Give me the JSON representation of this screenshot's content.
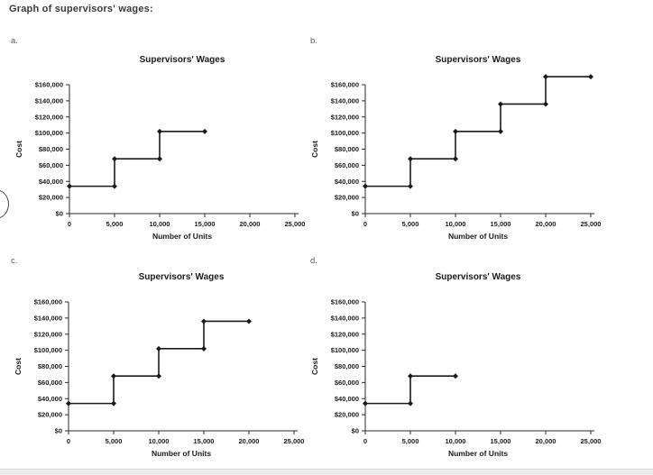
{
  "page": {
    "title": "Graph of supervisors' wages:"
  },
  "colors": {
    "title_text": "#3a3a3a",
    "panel_label_text": "#595959",
    "chart_text": "#1a1a1a",
    "line": "#1a1a1a",
    "axis": "#2b2b2b",
    "bottom_bar": "#ededed",
    "bottom_bar_border": "#d6d6d6",
    "arc_stroke": "#4a4a4a"
  },
  "panels": [
    {
      "label": "a."
    },
    {
      "label": "b."
    },
    {
      "label": "c."
    },
    {
      "label": "d."
    }
  ],
  "chart_data": [
    {
      "id": "a",
      "type": "line",
      "subtype": "step",
      "title": "Supervisors' Wages",
      "xlabel": "Number of Units",
      "ylabel": "Cost",
      "xlim": [
        0,
        25000
      ],
      "ylim": [
        0,
        160000
      ],
      "xticks": [
        0,
        5000,
        10000,
        15000,
        20000,
        25000
      ],
      "yticks": [
        0,
        20000,
        40000,
        60000,
        80000,
        100000,
        120000,
        140000,
        160000
      ],
      "x_tick_labels": [
        "0",
        "5,000",
        "10,000",
        "15,000",
        "20,000",
        "25,000"
      ],
      "y_tick_labels": [
        "$0",
        "$20,000",
        "$40,000",
        "$60,000",
        "$80,000",
        "$100,000",
        "$120,000",
        "$140,000",
        "$160,000"
      ],
      "grid": false,
      "legend": "none",
      "points": [
        [
          0,
          34000
        ],
        [
          5000,
          34000
        ],
        [
          5000,
          68000
        ],
        [
          10000,
          68000
        ],
        [
          10000,
          102000
        ],
        [
          15000,
          102000
        ]
      ]
    },
    {
      "id": "b",
      "type": "line",
      "subtype": "step",
      "title": "Supervisors' Wages",
      "xlabel": "Number of Units",
      "ylabel": "Cost",
      "xlim": [
        0,
        25000
      ],
      "ylim": [
        0,
        160000
      ],
      "xticks": [
        0,
        5000,
        10000,
        15000,
        20000,
        25000
      ],
      "yticks": [
        0,
        20000,
        40000,
        60000,
        80000,
        100000,
        120000,
        140000,
        160000
      ],
      "x_tick_labels": [
        "0",
        "5,000",
        "10,000",
        "15,000",
        "20,000",
        "25,000"
      ],
      "y_tick_labels": [
        "$0",
        "$20,000",
        "$40,000",
        "$60,000",
        "$80,000",
        "$100,000",
        "$120,000",
        "$140,000",
        "$160,000"
      ],
      "grid": false,
      "legend": "none",
      "points": [
        [
          0,
          34000
        ],
        [
          5000,
          34000
        ],
        [
          5000,
          68000
        ],
        [
          10000,
          68000
        ],
        [
          10000,
          102000
        ],
        [
          15000,
          102000
        ],
        [
          15000,
          136000
        ],
        [
          20000,
          136000
        ],
        [
          20000,
          170000
        ],
        [
          25000,
          170000
        ]
      ]
    },
    {
      "id": "c",
      "type": "line",
      "subtype": "step",
      "title": "Supervisors' Wages",
      "xlabel": "Number of Units",
      "ylabel": "Cost",
      "xlim": [
        0,
        25000
      ],
      "ylim": [
        0,
        160000
      ],
      "xticks": [
        0,
        5000,
        10000,
        15000,
        20000,
        25000
      ],
      "yticks": [
        0,
        20000,
        40000,
        60000,
        80000,
        100000,
        120000,
        140000,
        160000
      ],
      "x_tick_labels": [
        "0",
        "5,000",
        "10,000",
        "15,000",
        "20,000",
        "25,000"
      ],
      "y_tick_labels": [
        "$0",
        "$20,000",
        "$40,000",
        "$60,000",
        "$80,000",
        "$100,000",
        "$120,000",
        "$140,000",
        "$160,000"
      ],
      "grid": false,
      "legend": "none",
      "points": [
        [
          0,
          34000
        ],
        [
          5000,
          34000
        ],
        [
          5000,
          68000
        ],
        [
          10000,
          68000
        ],
        [
          10000,
          102000
        ],
        [
          15000,
          102000
        ],
        [
          15000,
          136000
        ],
        [
          20000,
          136000
        ]
      ]
    },
    {
      "id": "d",
      "type": "line",
      "subtype": "step",
      "title": "Supervisors' Wages",
      "xlabel": "Number of Units",
      "ylabel": "Cost",
      "xlim": [
        0,
        25000
      ],
      "ylim": [
        0,
        160000
      ],
      "xticks": [
        0,
        5000,
        10000,
        15000,
        20000,
        25000
      ],
      "yticks": [
        0,
        20000,
        40000,
        60000,
        80000,
        100000,
        120000,
        140000,
        160000
      ],
      "x_tick_labels": [
        "0",
        "5,000",
        "10,000",
        "15,000",
        "20,000",
        "25,000"
      ],
      "y_tick_labels": [
        "$0",
        "$20,000",
        "$40,000",
        "$60,000",
        "$80,000",
        "$100,000",
        "$120,000",
        "$140,000",
        "$160,000"
      ],
      "grid": false,
      "legend": "none",
      "points": [
        [
          0,
          34000
        ],
        [
          5000,
          34000
        ],
        [
          5000,
          68000
        ],
        [
          10000,
          68000
        ]
      ]
    }
  ]
}
